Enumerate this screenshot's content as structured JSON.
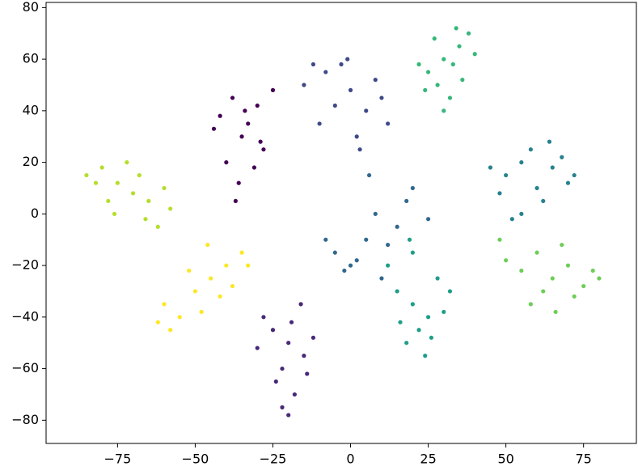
{
  "chart_data": {
    "type": "scatter",
    "xlim": [
      -98,
      92
    ],
    "ylim": [
      -89,
      82
    ],
    "xticks": [
      {
        "value": -75,
        "label": "−75"
      },
      {
        "value": -50,
        "label": "−50"
      },
      {
        "value": -25,
        "label": "−25"
      },
      0,
      25,
      50,
      75
    ],
    "yticks": [
      {
        "value": -80,
        "label": "−80"
      },
      {
        "value": -60,
        "label": "−60"
      },
      {
        "value": -40,
        "label": "−40"
      },
      {
        "value": -20,
        "label": "−20"
      },
      0,
      20,
      40,
      60,
      80
    ],
    "series": [
      {
        "color": "#440154",
        "x": [
          -42,
          -38,
          -35,
          -30,
          -28,
          -40,
          -33,
          -36,
          -25,
          -44,
          -31,
          -37,
          -34,
          -29
        ],
        "y": [
          38,
          45,
          30,
          42,
          25,
          20,
          35,
          12,
          48,
          33,
          18,
          5,
          40,
          28
        ]
      },
      {
        "color": "#482878",
        "x": [
          -25,
          -20,
          -15,
          -22,
          -18,
          -28,
          -12,
          -20,
          -24,
          -16,
          -30,
          -19,
          -22,
          -14
        ],
        "y": [
          -45,
          -50,
          -55,
          -60,
          -70,
          -40,
          -48,
          -78,
          -65,
          -35,
          -52,
          -42,
          -75,
          -62
        ]
      },
      {
        "color": "#3e4989",
        "x": [
          -15,
          -8,
          0,
          5,
          -3,
          10,
          -10,
          2,
          8,
          -5,
          12,
          -12,
          3,
          -1
        ],
        "y": [
          50,
          55,
          48,
          40,
          58,
          45,
          35,
          30,
          52,
          42,
          35,
          58,
          25,
          60
        ]
      },
      {
        "color": "#31688e",
        "x": [
          -5,
          0,
          5,
          10,
          15,
          2,
          -2,
          8,
          18,
          12,
          20,
          -8,
          6,
          25
        ],
        "y": [
          -15,
          -20,
          -10,
          -25,
          -5,
          -18,
          -22,
          0,
          5,
          -12,
          10,
          -10,
          15,
          -2
        ]
      },
      {
        "color": "#26828e",
        "x": [
          50,
          55,
          60,
          65,
          70,
          58,
          62,
          48,
          68,
          72,
          55,
          45,
          64,
          52
        ],
        "y": [
          15,
          20,
          10,
          18,
          12,
          25,
          5,
          8,
          22,
          15,
          0,
          18,
          28,
          -2
        ]
      },
      {
        "color": "#1f9e89",
        "x": [
          15,
          20,
          25,
          22,
          18,
          28,
          30,
          12,
          24,
          20,
          32,
          16,
          26,
          19
        ],
        "y": [
          -30,
          -35,
          -40,
          -45,
          -50,
          -25,
          -38,
          -20,
          -55,
          -15,
          -30,
          -42,
          -48,
          -10
        ]
      },
      {
        "color": "#35b779",
        "x": [
          25,
          30,
          35,
          38,
          28,
          32,
          40,
          22,
          34,
          30,
          27,
          36,
          24,
          33
        ],
        "y": [
          55,
          60,
          65,
          70,
          50,
          45,
          62,
          58,
          72,
          40,
          68,
          52,
          48,
          58
        ]
      },
      {
        "color": "#6ece58",
        "x": [
          50,
          55,
          60,
          65,
          70,
          75,
          80,
          62,
          58,
          68,
          72,
          48,
          78,
          66
        ],
        "y": [
          -18,
          -22,
          -15,
          -25,
          -20,
          -28,
          -25,
          -30,
          -35,
          -12,
          -32,
          -10,
          -22,
          -38
        ]
      },
      {
        "color": "#b5de2b",
        "x": [
          -85,
          -80,
          -75,
          -70,
          -65,
          -60,
          -78,
          -72,
          -68,
          -62,
          -82,
          -76,
          -66,
          -58
        ],
        "y": [
          15,
          18,
          12,
          8,
          5,
          10,
          5,
          20,
          15,
          -5,
          12,
          0,
          -2,
          2
        ]
      },
      {
        "color": "#fde725",
        "x": [
          -60,
          -55,
          -50,
          -45,
          -40,
          -35,
          -58,
          -52,
          -48,
          -42,
          -38,
          -62,
          -46,
          -33
        ],
        "y": [
          -35,
          -40,
          -30,
          -25,
          -20,
          -15,
          -45,
          -22,
          -38,
          -32,
          -28,
          -42,
          -12,
          -20
        ]
      }
    ]
  }
}
